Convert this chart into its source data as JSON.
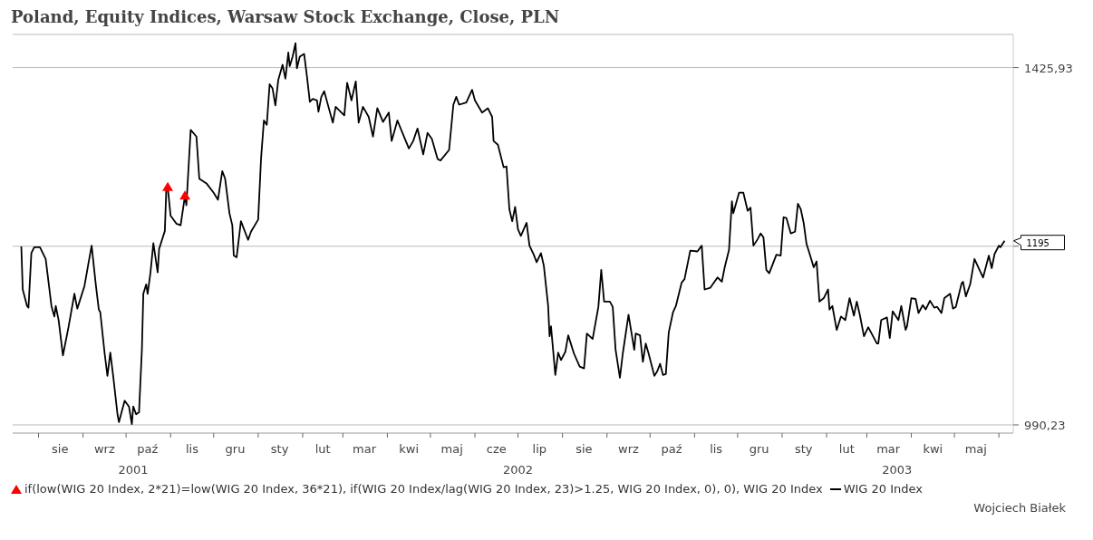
{
  "chart_data": {
    "type": "line",
    "title": "Poland, Equity Indices, Warsaw Stock Exchange, Close, PLN",
    "x": [
      "2001-07-20",
      "2001-07-21",
      "2001-07-24",
      "2001-07-25",
      "2001-07-27",
      "2001-07-29",
      "2001-08-02",
      "2001-08-04",
      "2001-08-06",
      "2001-08-10",
      "2001-08-12",
      "2001-08-13",
      "2001-08-15",
      "2001-08-18",
      "2001-08-22",
      "2001-08-26",
      "2001-08-28",
      "2001-09-02",
      "2001-09-05",
      "2001-09-07",
      "2001-09-10",
      "2001-09-12",
      "2001-09-13",
      "2001-09-16",
      "2001-09-18",
      "2001-09-20",
      "2001-09-22",
      "2001-09-25",
      "2001-09-26",
      "2001-09-30",
      "2001-10-03",
      "2001-10-05",
      "2001-10-06",
      "2001-10-08",
      "2001-10-10",
      "2001-10-12",
      "2001-10-13",
      "2001-10-15",
      "2001-10-16",
      "2001-10-18",
      "2001-10-20",
      "2001-10-23",
      "2001-10-24",
      "2001-10-28",
      "2001-10-29",
      "2001-10-30",
      "2001-11-01",
      "2001-11-05",
      "2001-11-08",
      "2001-11-11",
      "2001-11-12",
      "2001-11-15",
      "2001-11-19",
      "2001-11-21",
      "2001-11-26",
      "2001-12-01",
      "2001-12-04",
      "2001-12-07",
      "2001-12-09",
      "2001-12-12",
      "2001-12-14",
      "2001-12-15",
      "2001-12-17",
      "2001-12-20",
      "2001-12-25",
      "2001-12-27",
      "2002-01-01",
      "2002-01-03",
      "2002-01-05",
      "2002-01-07",
      "2002-01-09",
      "2002-01-11",
      "2002-01-13",
      "2002-01-15",
      "2002-01-18",
      "2002-01-20",
      "2002-01-22",
      "2002-01-23",
      "2002-01-25",
      "2002-01-27",
      "2002-01-28",
      "2002-01-30",
      "2002-02-02",
      "2002-02-04",
      "2002-02-06",
      "2002-02-08",
      "2002-02-11",
      "2002-02-12",
      "2002-02-14",
      "2002-02-16",
      "2002-02-22",
      "2002-02-24",
      "2002-03-02",
      "2002-03-04",
      "2002-03-07",
      "2002-03-10",
      "2002-03-12",
      "2002-03-15",
      "2002-03-19",
      "2002-03-22",
      "2002-03-25",
      "2002-03-29",
      "2002-04-02",
      "2002-04-04",
      "2002-04-08",
      "2002-04-13",
      "2002-04-16",
      "2002-04-19",
      "2002-04-22",
      "2002-04-26",
      "2002-04-29",
      "2002-05-02",
      "2002-05-06",
      "2002-05-08",
      "2002-05-14",
      "2002-05-17",
      "2002-05-19",
      "2002-05-21",
      "2002-05-26",
      "2002-05-30",
      "2002-06-01",
      "2002-06-06",
      "2002-06-10",
      "2002-06-13",
      "2002-06-14",
      "2002-06-17",
      "2002-06-21",
      "2002-06-23",
      "2002-06-25",
      "2002-06-27",
      "2002-06-29",
      "2002-07-01",
      "2002-07-03",
      "2002-07-07",
      "2002-07-09",
      "2002-07-12",
      "2002-07-14",
      "2002-07-17",
      "2002-07-19",
      "2002-07-22",
      "2002-07-23",
      "2002-07-24",
      "2002-07-27",
      "2002-07-29",
      "2002-07-31",
      "2002-08-03",
      "2002-08-05",
      "2002-08-09",
      "2002-08-13",
      "2002-08-16",
      "2002-08-18",
      "2002-08-22",
      "2002-08-26",
      "2002-08-28",
      "2002-08-30",
      "2002-09-03",
      "2002-09-05",
      "2002-09-07",
      "2002-09-10",
      "2002-09-12",
      "2002-09-16",
      "2002-09-20",
      "2002-09-21",
      "2002-09-24",
      "2002-09-26",
      "2002-09-28",
      "2002-09-30",
      "2002-10-04",
      "2002-10-06",
      "2002-10-08",
      "2002-10-10",
      "2002-10-12",
      "2002-10-14",
      "2002-10-17",
      "2002-10-19",
      "2002-10-23",
      "2002-10-25",
      "2002-10-29",
      "2002-11-03",
      "2002-11-06",
      "2002-11-08",
      "2002-11-12",
      "2002-11-17",
      "2002-11-20",
      "2002-11-22",
      "2002-11-25",
      "2002-11-27",
      "2002-11-28",
      "2002-12-02",
      "2002-12-05",
      "2002-12-08",
      "2002-12-10",
      "2002-12-12",
      "2002-12-15",
      "2002-12-17",
      "2002-12-19",
      "2002-12-21",
      "2002-12-23",
      "2002-12-28",
      "2002-12-31",
      "2003-01-02",
      "2003-01-04",
      "2003-01-07",
      "2003-01-10",
      "2003-01-12",
      "2003-01-14",
      "2003-01-16",
      "2003-01-18",
      "2003-01-20",
      "2003-01-23",
      "2003-01-25",
      "2003-01-27",
      "2003-01-30",
      "2003-02-02",
      "2003-02-03",
      "2003-02-05",
      "2003-02-08",
      "2003-02-11",
      "2003-02-14",
      "2003-02-17",
      "2003-02-20",
      "2003-02-22",
      "2003-02-24",
      "2003-02-27",
      "2003-03-02",
      "2003-03-04",
      "2003-03-08",
      "2003-03-09",
      "2003-03-11",
      "2003-03-15",
      "2003-03-17",
      "2003-03-19",
      "2003-03-23",
      "2003-03-25",
      "2003-03-28",
      "2003-03-29",
      "2003-04-01",
      "2003-04-04",
      "2003-04-06",
      "2003-04-09",
      "2003-04-11",
      "2003-04-14",
      "2003-04-17",
      "2003-04-19",
      "2003-04-22",
      "2003-04-24",
      "2003-04-28",
      "2003-04-30",
      "2003-05-02",
      "2003-05-06",
      "2003-05-07",
      "2003-05-09",
      "2003-05-12",
      "2003-05-15",
      "2003-05-19",
      "2003-05-21",
      "2003-05-25",
      "2003-05-27",
      "2003-05-29",
      "2003-06-01",
      "2003-06-02",
      "2003-06-05"
    ],
    "series": [
      {
        "name": "if(low(WIG 20 Index, 2*21)=low(WIG 20 Index, 36*21), if(WIG 20 Index/lag(WIG 20 Index, 23)>1.25, WIG 20 Index, 0), 0), WIG 20 Index",
        "type": "scatter",
        "marker": "triangle",
        "color": "#ff0000",
        "x": [
          "2001-10-30",
          "2001-11-11"
        ],
        "values": [
          1262,
          1251
        ]
      },
      {
        "name": "WIG 20 Index",
        "color": "#000000",
        "values": [
          1188,
          1137,
          1118,
          1116,
          1180,
          1187,
          1187,
          1180,
          1173,
          1118,
          1106,
          1118,
          1102,
          1063,
          1095,
          1132,
          1115,
          1141,
          1170,
          1189,
          1141,
          1114,
          1111,
          1066,
          1041,
          1066,
          1041,
          1001,
          993,
          1015,
          1009,
          991,
          1009,
          1001,
          1003,
          1069,
          1132,
          1143,
          1132,
          1157,
          1192,
          1157,
          1185,
          1207,
          1260,
          1262,
          1226,
          1216,
          1214,
          1251,
          1239,
          1338,
          1329,
          1273,
          1267,
          1255,
          1246,
          1283,
          1273,
          1229,
          1214,
          1177,
          1175,
          1219,
          1196,
          1206,
          1221,
          1299,
          1351,
          1345,
          1402,
          1396,
          1372,
          1408,
          1430,
          1410,
          1448,
          1428,
          1442,
          1462,
          1425,
          1442,
          1446,
          1413,
          1377,
          1381,
          1379,
          1363,
          1384,
          1392,
          1348,
          1370,
          1358,
          1404,
          1379,
          1406,
          1348,
          1370,
          1356,
          1329,
          1368,
          1349,
          1362,
          1323,
          1351,
          1327,
          1313,
          1323,
          1340,
          1305,
          1334,
          1326,
          1299,
          1297,
          1311,
          1373,
          1384,
          1373,
          1376,
          1394,
          1379,
          1362,
          1368,
          1356,
          1323,
          1318,
          1288,
          1289,
          1234,
          1219,
          1237,
          1209,
          1201,
          1217,
          1189,
          1178,
          1169,
          1180,
          1165,
          1118,
          1084,
          1095,
          1042,
          1066,
          1058,
          1067,
          1085,
          1065,
          1051,
          1049,
          1087,
          1081,
          1117,
          1160,
          1123,
          1123,
          1117,
          1069,
          1039,
          1065,
          1108,
          1069,
          1087,
          1085,
          1056,
          1076,
          1065,
          1041,
          1046,
          1054,
          1042,
          1043,
          1088,
          1111,
          1118,
          1145,
          1149,
          1183,
          1182,
          1189,
          1137,
          1139,
          1151,
          1146,
          1163,
          1184,
          1244,
          1229,
          1255,
          1255,
          1232,
          1236,
          1189,
          1197,
          1204,
          1199,
          1160,
          1156,
          1178,
          1177,
          1224,
          1223,
          1204,
          1206,
          1241,
          1234,
          1217,
          1191,
          1180,
          1163,
          1170,
          1123,
          1127,
          1137,
          1114,
          1118,
          1091,
          1106,
          1102,
          1127,
          1107,
          1123,
          1109,
          1084,
          1094,
          1088,
          1076,
          1076,
          1102,
          1105,
          1082,
          1112,
          1102,
          1118,
          1091,
          1095,
          1127,
          1126,
          1110,
          1119,
          1114,
          1124,
          1116,
          1117,
          1110,
          1127,
          1132,
          1115,
          1117,
          1144,
          1146,
          1129,
          1143,
          1173,
          1158,
          1151,
          1177,
          1162,
          1179,
          1189,
          1187,
          1195
        ]
      }
    ],
    "log": "y",
    "grid": "y",
    "legend": "bottom",
    "line_style": "solid",
    "xlim": [
      "2001-07-14",
      "2003-06-11"
    ],
    "xticks": [
      {
        "value": "2001-08-01",
        "label": null
      },
      {
        "value": "2001-08-16",
        "label": "sie"
      },
      {
        "value": "2001-09-01",
        "label": null
      },
      {
        "value": "2001-09-16",
        "label": "wrz"
      },
      {
        "value": "2001-10-01",
        "label": null
      },
      {
        "value": "2001-10-16",
        "label": "paź"
      },
      {
        "value": "2001-11-01",
        "label": null
      },
      {
        "value": "2001-11-16",
        "label": "lis"
      },
      {
        "value": "2001-12-01",
        "label": null
      },
      {
        "value": "2001-12-16",
        "label": "gru"
      },
      {
        "value": "2002-01-01",
        "label": null
      },
      {
        "value": "2002-01-16",
        "label": "sty"
      },
      {
        "value": "2002-02-01",
        "label": null
      },
      {
        "value": "2002-02-15",
        "label": "lut"
      },
      {
        "value": "2002-03-01",
        "label": null
      },
      {
        "value": "2002-03-16",
        "label": "mar"
      },
      {
        "value": "2002-04-01",
        "label": null
      },
      {
        "value": "2002-04-16",
        "label": "kwi"
      },
      {
        "value": "2002-05-01",
        "label": null
      },
      {
        "value": "2002-05-16",
        "label": "maj"
      },
      {
        "value": "2002-06-01",
        "label": null
      },
      {
        "value": "2002-06-16",
        "label": "cze"
      },
      {
        "value": "2002-07-01",
        "label": null
      },
      {
        "value": "2002-07-16",
        "label": "lip"
      },
      {
        "value": "2002-08-01",
        "label": null
      },
      {
        "value": "2002-08-16",
        "label": "sie"
      },
      {
        "value": "2002-09-01",
        "label": null
      },
      {
        "value": "2002-09-16",
        "label": "wrz"
      },
      {
        "value": "2002-10-01",
        "label": null
      },
      {
        "value": "2002-10-16",
        "label": "paź"
      },
      {
        "value": "2002-11-01",
        "label": null
      },
      {
        "value": "2002-11-16",
        "label": "lis"
      },
      {
        "value": "2002-12-01",
        "label": null
      },
      {
        "value": "2002-12-16",
        "label": "gru"
      },
      {
        "value": "2003-01-01",
        "label": null
      },
      {
        "value": "2003-01-16",
        "label": "sty"
      },
      {
        "value": "2003-02-01",
        "label": null
      },
      {
        "value": "2003-02-15",
        "label": "lut"
      },
      {
        "value": "2003-03-01",
        "label": null
      },
      {
        "value": "2003-03-16",
        "label": "mar"
      },
      {
        "value": "2003-04-01",
        "label": null
      },
      {
        "value": "2003-04-16",
        "label": "kwi"
      },
      {
        "value": "2003-05-01",
        "label": null
      },
      {
        "value": "2003-05-16",
        "label": "maj"
      },
      {
        "value": "2003-06-01",
        "label": null
      }
    ],
    "ylim": [
      982,
      1475
    ],
    "yticks": [
      {
        "value": 990.23,
        "label": "990,23"
      },
      {
        "value": 1188.3,
        "label": null
      },
      {
        "value": 1425.93,
        "label": "1425,93"
      }
    ],
    "x2lim": [
      "2001-07-14",
      "2003-06-11"
    ],
    "x2ticks": [
      {
        "value": "2001-10-06",
        "label": "2001"
      },
      {
        "value": "2002-07-01",
        "label": "2002"
      },
      {
        "value": "2003-03-22",
        "label": "2003"
      }
    ],
    "annotations": [
      {
        "text": "1195",
        "x": "2003-06-05",
        "y": 1195
      },
      "Wojciech Białek"
    ]
  }
}
